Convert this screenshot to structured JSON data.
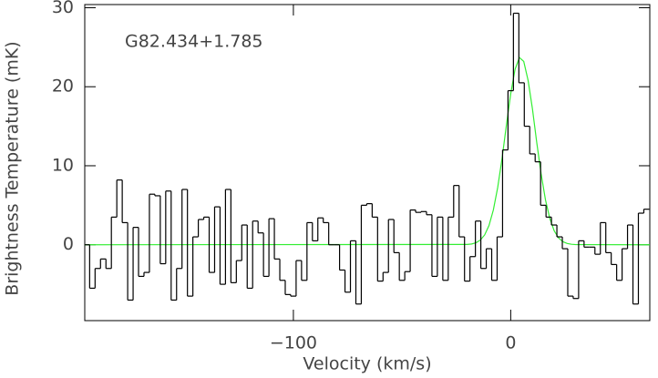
{
  "chart_data": {
    "type": "step",
    "annotation": "G82.434+1.785",
    "xlabel": "Velocity (km/s)",
    "ylabel": "Brightness Temperature (mK)",
    "xlim": [
      -196,
      64
    ],
    "ylim": [
      -9.6,
      30.4
    ],
    "xticks": [
      {
        "value": -100,
        "label": "−100"
      },
      0
    ],
    "yticks": [
      0,
      10,
      20,
      30
    ],
    "channel_width": 2.5,
    "series": [
      {
        "name": "spectrum",
        "color": "#000000",
        "x": [
          -195,
          -192.5,
          -190,
          -187.5,
          -185,
          -182.5,
          -180,
          -177.5,
          -175,
          -172.5,
          -170,
          -167.5,
          -165,
          -162.5,
          -160,
          -157.5,
          -155,
          -152.5,
          -150,
          -147.5,
          -145,
          -142.5,
          -140,
          -137.5,
          -135,
          -132.5,
          -130,
          -127.5,
          -125,
          -122.5,
          -120,
          -117.5,
          -115,
          -112.5,
          -110,
          -107.5,
          -105,
          -102.5,
          -100,
          -97.5,
          -95,
          -92.5,
          -90,
          -87.5,
          -85,
          -82.5,
          -80,
          -77.5,
          -75,
          -72.5,
          -70,
          -67.5,
          -65,
          -62.5,
          -60,
          -57.5,
          -55,
          -52.5,
          -50,
          -47.5,
          -45,
          -42.5,
          -40,
          -37.5,
          -35,
          -32.5,
          -30,
          -27.5,
          -25,
          -22.5,
          -20,
          -17.5,
          -15,
          -12.5,
          -10,
          -7.5,
          -5,
          -2.5,
          0,
          2.5,
          5,
          7.5,
          10,
          12.5,
          15,
          17.5,
          20,
          22.5,
          25,
          27.5,
          30,
          32.5,
          35,
          37.5,
          40,
          42.5,
          45,
          47.5,
          50,
          52.5,
          55,
          57.5,
          60,
          62.5
        ],
        "values": [
          0,
          -5.5,
          -3,
          -1.8,
          -3,
          3.5,
          8.2,
          2.8,
          -7,
          2.2,
          -4,
          -3.5,
          6.4,
          6.2,
          -2.4,
          6.8,
          -7,
          -3,
          7,
          -6.5,
          1,
          3.2,
          3.5,
          -3.5,
          4.8,
          -5,
          7,
          -4.8,
          -2,
          2.5,
          -5.5,
          3,
          1.5,
          -4,
          3.3,
          -1.8,
          -4.5,
          -6.3,
          -6.5,
          -2,
          -4.5,
          2.8,
          0.5,
          3.4,
          2.8,
          0,
          0,
          -3.2,
          -6,
          0.5,
          -7.5,
          5,
          5.2,
          3.5,
          -4.6,
          -3.5,
          3.2,
          -1,
          -4.5,
          -3.4,
          4.4,
          4.1,
          4.2,
          3.8,
          -4,
          3.5,
          -4.5,
          3.5,
          7.5,
          1,
          -4.6,
          -1.5,
          3,
          -3,
          -0.5,
          -4.5,
          1,
          12,
          19.5,
          29.3,
          20.5,
          15,
          11.5,
          10.5,
          5,
          3.5,
          2.5,
          1,
          -0.5,
          -6.5,
          -6.8,
          0.5,
          -0.3,
          -0.3,
          -1.2,
          2.8,
          -1,
          -2.5,
          -4.5,
          -0.5,
          2.5,
          -7.5,
          4,
          4.5
        ]
      },
      {
        "name": "fit",
        "color": "#33ee33",
        "x": [
          -196,
          -20,
          -18,
          -16,
          -14,
          -12,
          -10,
          -8,
          -6,
          -4,
          -2,
          0,
          2,
          4,
          6,
          8,
          10,
          12,
          14,
          16,
          18,
          20,
          22,
          24,
          26,
          28,
          30,
          64
        ],
        "values": [
          0,
          0.04,
          0.1,
          0.25,
          0.59,
          1.24,
          2.43,
          4.39,
          7.23,
          10.9,
          15.1,
          19.1,
          22.2,
          23.7,
          23.2,
          20.8,
          17.2,
          12.9,
          8.96,
          5.68,
          3.32,
          1.77,
          0.87,
          0.39,
          0.16,
          0.06,
          0.02,
          0
        ]
      }
    ]
  }
}
